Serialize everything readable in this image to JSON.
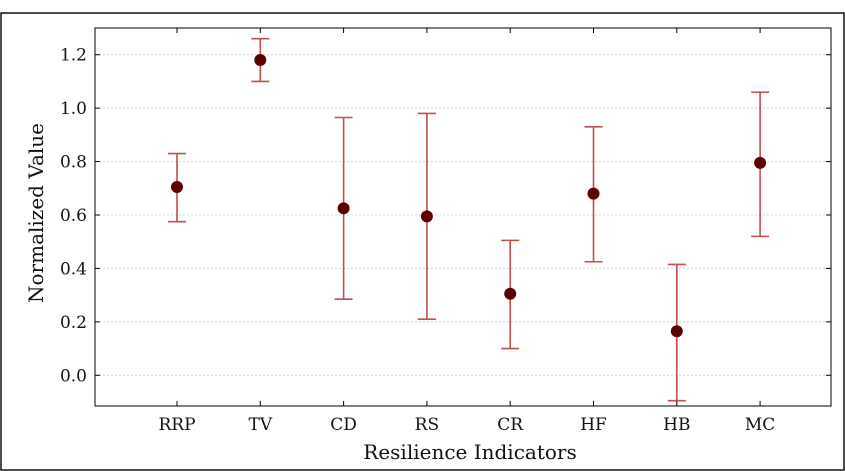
{
  "chart_data": {
    "type": "scatter",
    "subtype": "point-with-error-bars",
    "title": "",
    "xlabel": "Resilience Indicators",
    "ylabel": "Normalized Value",
    "categories": [
      "RRP",
      "TV",
      "CD",
      "RS",
      "CR",
      "HF",
      "HB",
      "MC"
    ],
    "series": [
      {
        "values": [
          0.705,
          1.18,
          0.625,
          0.595,
          0.305,
          0.68,
          0.165,
          0.795
        ],
        "error_low": [
          0.575,
          1.1,
          0.285,
          0.21,
          0.1,
          0.425,
          -0.095,
          0.52
        ],
        "error_high": [
          0.83,
          1.26,
          0.965,
          0.98,
          0.505,
          0.93,
          0.415,
          1.06
        ]
      }
    ],
    "yticks": [
      "0.0",
      "0.2",
      "0.4",
      "0.6",
      "0.8",
      "1.0",
      "1.2"
    ],
    "ylim": [
      -0.115,
      1.3
    ],
    "grid": true,
    "legend": "none",
    "colors": {
      "marker": "#5c0000",
      "error_bar": "#c0504d",
      "frame": "#000000"
    }
  }
}
